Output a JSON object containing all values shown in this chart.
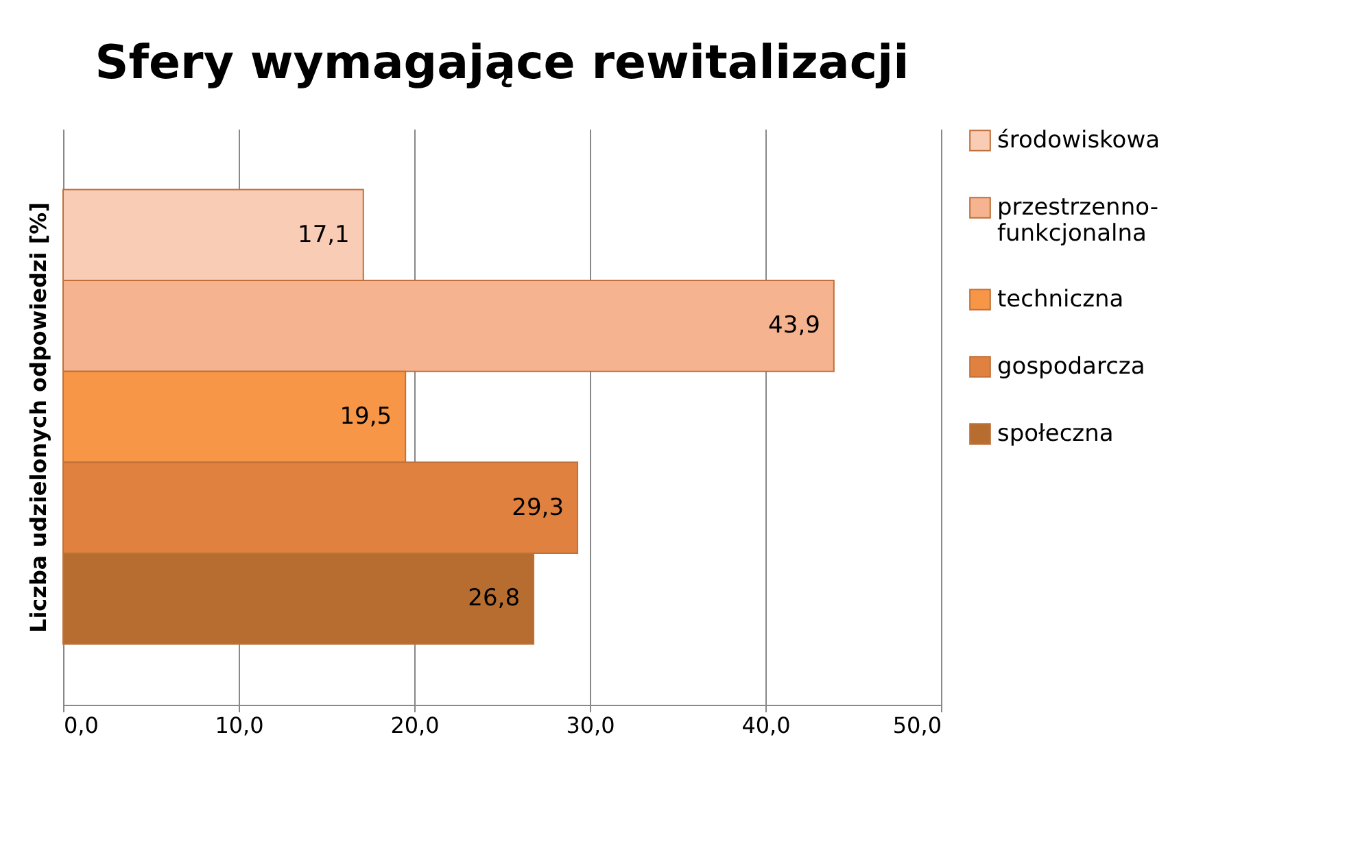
{
  "chart_data": {
    "type": "bar",
    "orientation": "horizontal",
    "title": "Sfery wymagające rewitalizacji",
    "ylabel": "Liczba udzielonych odpowiedzi [%]",
    "categories": [
      null
    ],
    "series": [
      {
        "name": "środowiskowa",
        "color": "#f9cdb5",
        "values": [
          17.1
        ],
        "value_labels": [
          "17,1"
        ]
      },
      {
        "name": "przestrzenno-funkcjonalna",
        "color": "#f6b38f",
        "values": [
          43.9
        ],
        "value_labels": [
          "43,9"
        ]
      },
      {
        "name": "techniczna",
        "color": "#f79646",
        "values": [
          19.5
        ],
        "value_labels": [
          "19,5"
        ]
      },
      {
        "name": "gospodarcza",
        "color": "#e0813f",
        "values": [
          29.3
        ],
        "value_labels": [
          "29,3"
        ]
      },
      {
        "name": "społeczna",
        "color": "#b86d30",
        "values": [
          26.8
        ],
        "value_labels": [
          "26,8"
        ]
      }
    ],
    "xlim": [
      0,
      50
    ],
    "xticks": [
      {
        "value": 0,
        "label": "0,0"
      },
      {
        "value": 10,
        "label": "10,0"
      },
      {
        "value": 20,
        "label": "20,0"
      },
      {
        "value": 30,
        "label": "30,0"
      },
      {
        "value": 40,
        "label": "40,0"
      },
      {
        "value": 50,
        "label": "50,0"
      }
    ],
    "grid": "x",
    "legend": "right"
  }
}
